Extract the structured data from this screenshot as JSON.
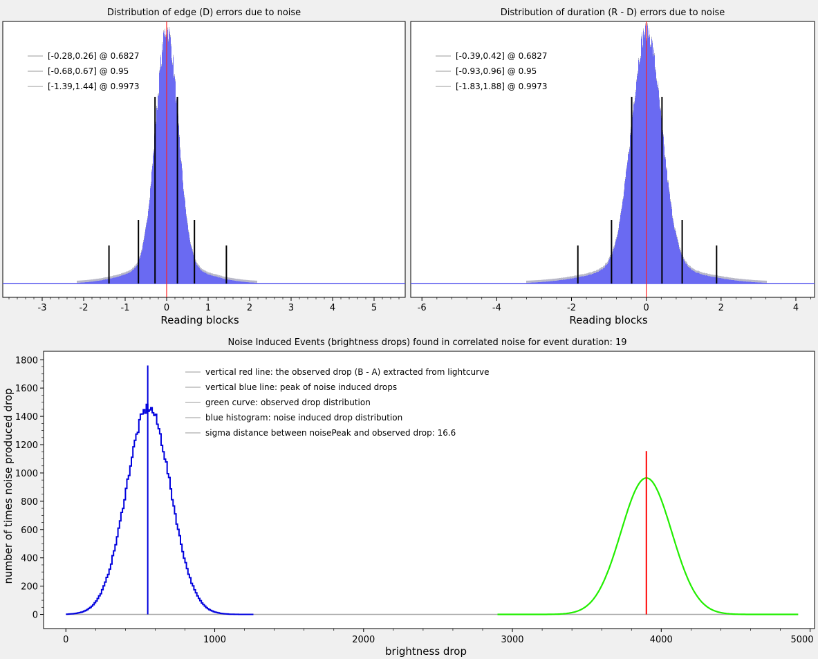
{
  "chart_data": [
    {
      "type": "bar",
      "title": "Distribution of edge (D) errors due to noise",
      "xlabel": "Reading blocks",
      "ylabel": "",
      "xlim": [
        -3.95,
        5.75
      ],
      "xticks": [
        -3,
        -2,
        -1,
        0,
        1,
        2,
        3,
        4,
        5
      ],
      "distribution": {
        "center": 0.0,
        "sigma": 0.27,
        "peak": 1.0
      },
      "observed_line": 0.0,
      "legend": [
        {
          "label": "[-0.28,0.26] @ 0.6827",
          "lo": -0.28,
          "hi": 0.26,
          "level": 0.6827
        },
        {
          "label": "[-0.68,0.67] @ 0.95",
          "lo": -0.68,
          "hi": 0.67,
          "level": 0.95
        },
        {
          "label": "[-1.39,1.44] @ 0.9973",
          "lo": -1.39,
          "hi": 1.44,
          "level": 0.9973
        }
      ],
      "legend_position": "top-left"
    },
    {
      "type": "bar",
      "title": "Distribution of duration (R - D) errors due to noise",
      "xlabel": "Reading blocks",
      "ylabel": "",
      "xlim": [
        -6.3,
        4.5
      ],
      "xticks": [
        -6,
        -4,
        -2,
        0,
        2,
        4
      ],
      "distribution": {
        "center": 0.0,
        "sigma": 0.4,
        "peak": 1.0
      },
      "observed_line": 0.0,
      "legend": [
        {
          "label": "[-0.39,0.42] @ 0.6827",
          "lo": -0.39,
          "hi": 0.42,
          "level": 0.6827
        },
        {
          "label": "[-0.93,0.96] @ 0.95",
          "lo": -0.93,
          "hi": 0.96,
          "level": 0.95
        },
        {
          "label": "[-1.83,1.88] @ 0.9973",
          "lo": -1.83,
          "hi": 1.88,
          "level": 0.9973
        }
      ],
      "legend_position": "top-left"
    },
    {
      "type": "line",
      "title": "Noise Induced Events (brightness drops) found in correlated noise for event duration: 19",
      "xlabel": "brightness drop",
      "ylabel": "number of times noise produced drop",
      "xlim": [
        -150,
        5030
      ],
      "ylim": [
        -100,
        1860
      ],
      "xticks": [
        0,
        1000,
        2000,
        3000,
        4000,
        5000
      ],
      "yticks": [
        0,
        200,
        400,
        600,
        800,
        1000,
        1200,
        1400,
        1600,
        1800
      ],
      "series": [
        {
          "name": "blue histogram: noise induced drop distribution",
          "color": "#0000dd",
          "center": 550,
          "sigma": 150,
          "peak": 1460
        },
        {
          "name": "green curve: observed drop distribution",
          "color": "#22ee00",
          "center": 3900,
          "sigma": 170,
          "peak": 965
        }
      ],
      "vertical_lines": [
        {
          "x": 550,
          "y_top": 1760,
          "color": "#0000dd"
        },
        {
          "x": 3900,
          "y_top": 1155,
          "color": "#ff0000"
        }
      ],
      "legend": [
        "vertical red line: the observed drop (B - A) extracted from lightcurve",
        "vertical blue line: peak of noise induced drops",
        "green curve: observed drop distribution",
        "blue histogram: noise induced drop distribution",
        "sigma distance between noisePeak and observed drop: 16.6"
      ],
      "legend_position": "top-left"
    }
  ]
}
